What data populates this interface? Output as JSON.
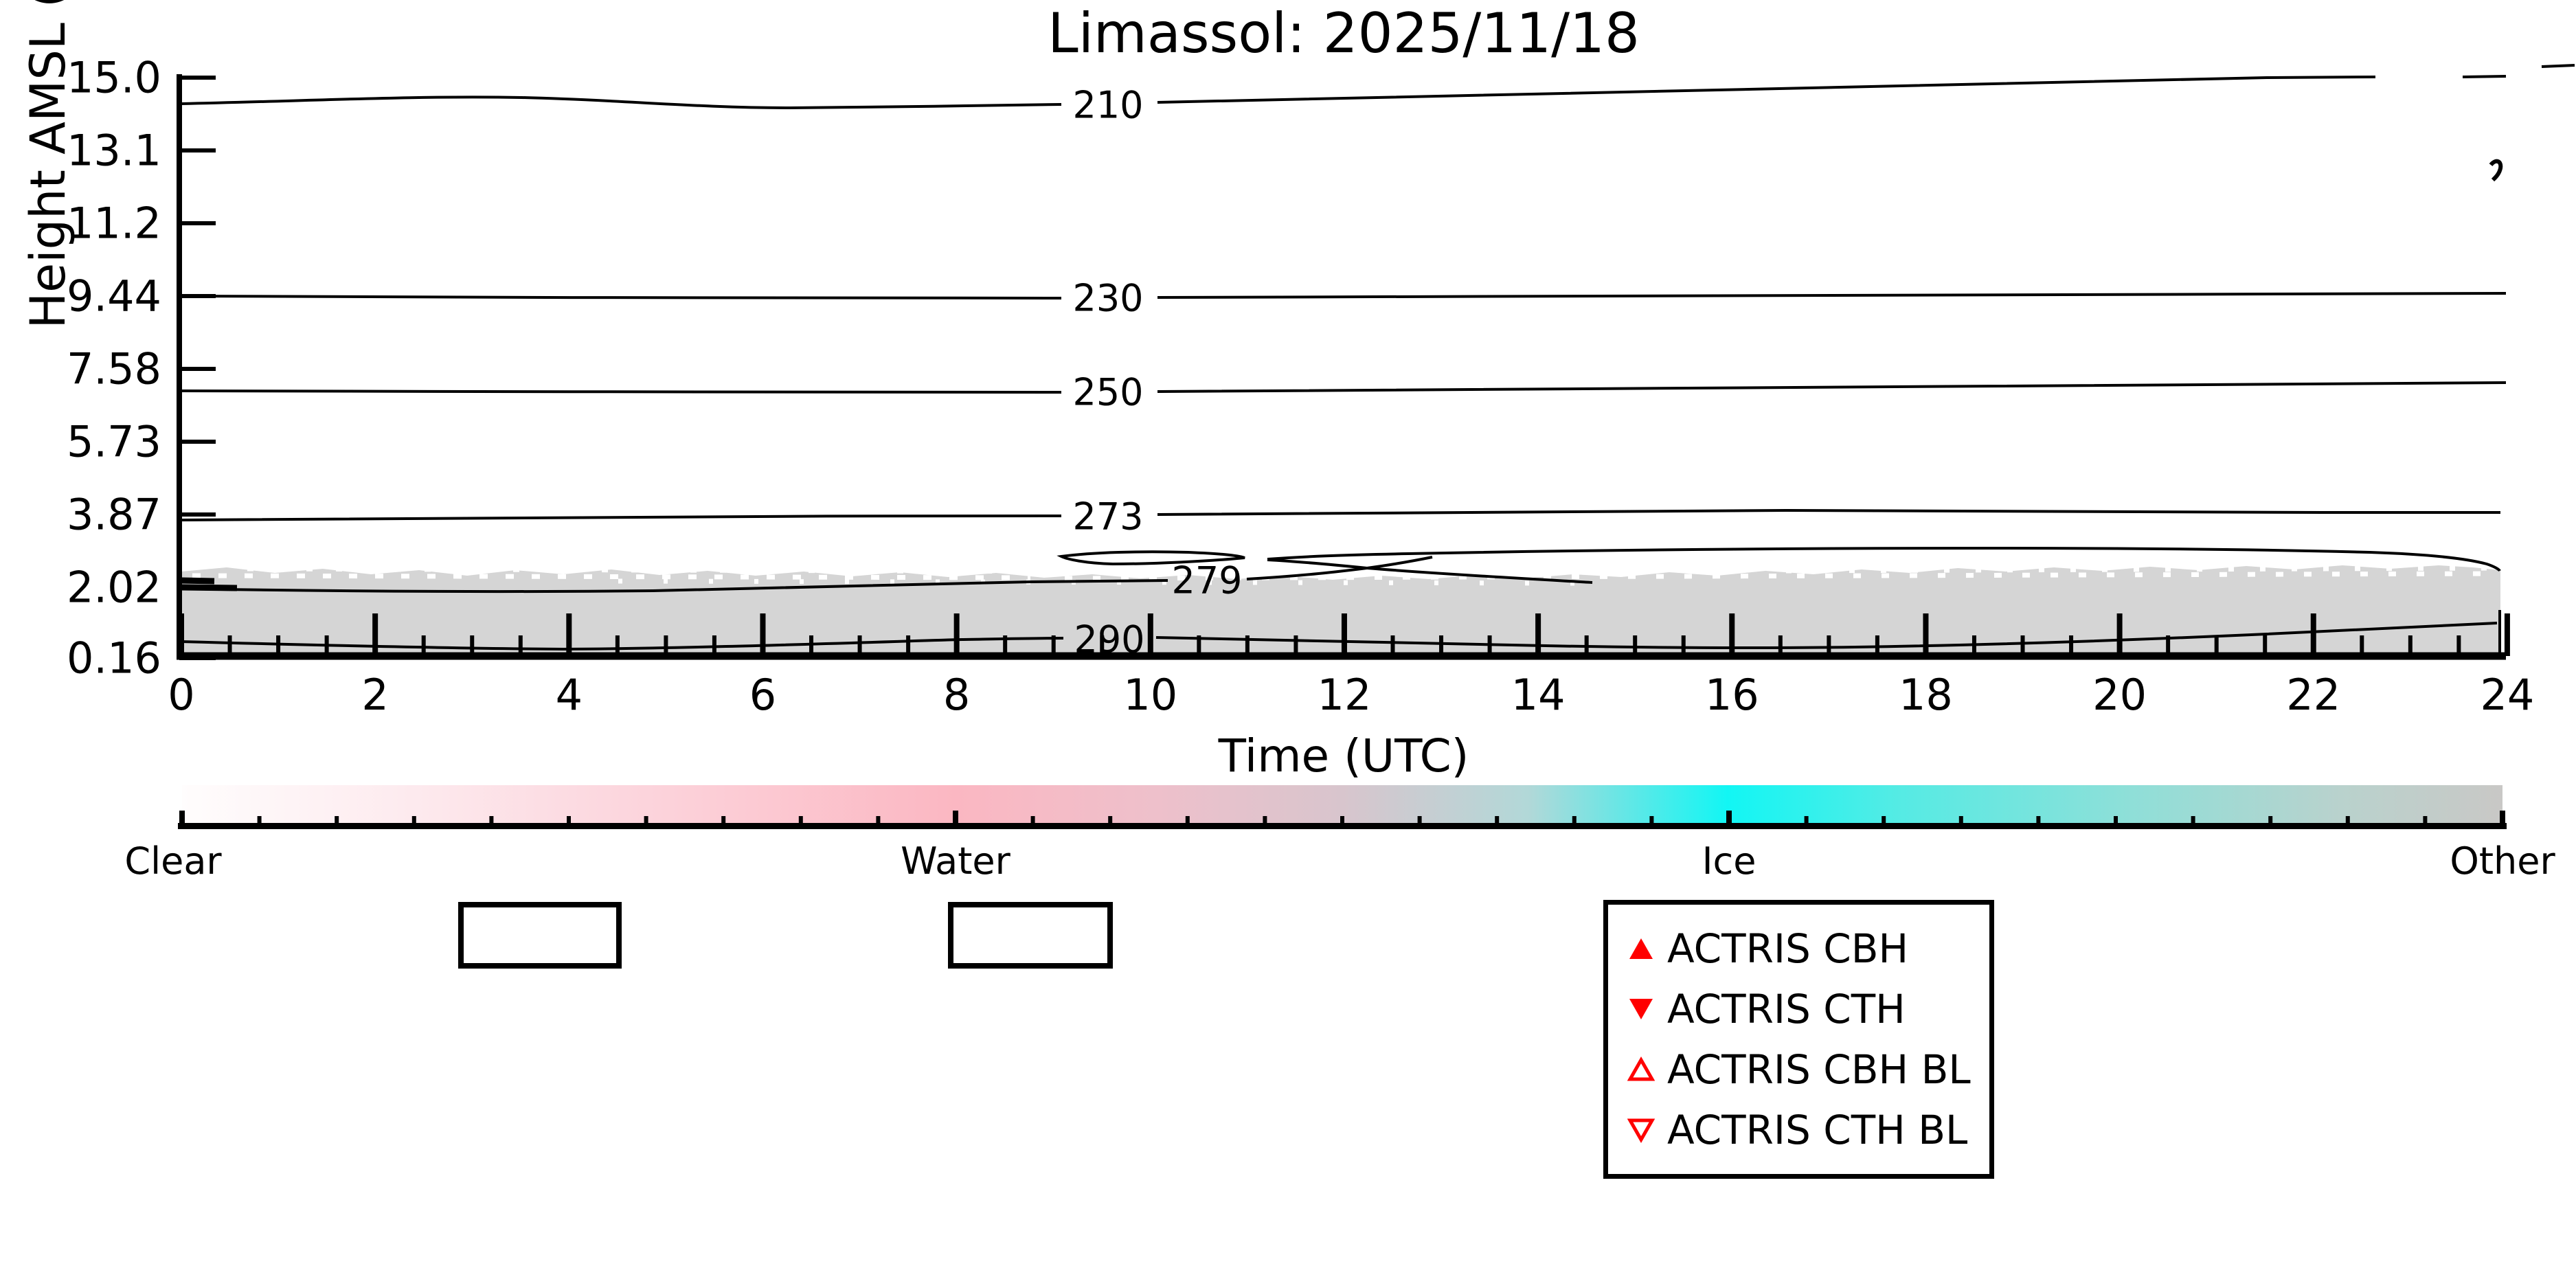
{
  "title": "Limassol: 2025/11/18",
  "axes": {
    "y": {
      "label": "Height AMSL (km)",
      "ticks": [
        "15.0",
        "13.1",
        "11.2",
        "9.44",
        "7.58",
        "5.73",
        "3.87",
        "2.02",
        "0.16"
      ]
    },
    "x": {
      "label": "Time (UTC)",
      "ticks": [
        "0",
        "2",
        "4",
        "6",
        "8",
        "10",
        "12",
        "14",
        "16",
        "18",
        "20",
        "22",
        "24"
      ]
    }
  },
  "contours": {
    "labels": [
      "210",
      "230",
      "250",
      "273",
      "279",
      "290"
    ]
  },
  "colorbar": {
    "labels": [
      "Clear",
      "Water",
      "Ice",
      "Other"
    ],
    "colors": {
      "clear": "#fffdfd",
      "water": "#fbb7c2",
      "ice": "#12f6f4",
      "other": "#c9c8c6"
    }
  },
  "legend": {
    "marker_color": "#ff0000",
    "items": [
      {
        "label": "ACTRIS CBH",
        "marker": "filled-up-triangle"
      },
      {
        "label": "ACTRIS CTH",
        "marker": "filled-down-triangle"
      },
      {
        "label": "ACTRIS CBH BL",
        "marker": "open-up-triangle"
      },
      {
        "label": "ACTRIS CTH BL",
        "marker": "open-down-triangle"
      }
    ]
  },
  "chart_data": {
    "type": "contour",
    "title": "Limassol: 2025/11/18",
    "xlabel": "Time (UTC)",
    "ylabel": "Height AMSL (km)",
    "x_range_hours_utc": [
      0,
      24
    ],
    "x_tick_step_hours": 2,
    "y_tick_values_km": [
      15.0,
      13.1,
      11.2,
      9.44,
      7.58,
      5.73,
      3.87,
      2.02,
      0.16
    ],
    "contour_levels_K": [
      210,
      230,
      250,
      273,
      279,
      290
    ],
    "contour_height_km_approx": {
      "210": {
        "at_00utc": 14.3,
        "at_24utc": 15.0
      },
      "230": {
        "at_00utc": 9.44,
        "at_24utc": 9.5
      },
      "250": {
        "at_00utc": 7.0,
        "at_24utc": 7.2
      },
      "273": {
        "at_00utc": 3.85,
        "at_24utc": 3.9
      },
      "279": {
        "at_00utc": 2.05,
        "at_24utc": 2.6,
        "note": "closed lens features between 09 and 13 UTC near 2.3 km"
      },
      "290": {
        "at_00utc": 0.65,
        "at_24utc": 1.1
      }
    },
    "shaded_region": {
      "description": "light-gray classified layer from surface up to ~2.4 km AMSL across all 24 h, noisy speckled top edge",
      "top_km_approx": 2.4,
      "bottom_km": 0.16,
      "color": "#d5d5d5"
    },
    "classification_colorbar_categories": [
      "Clear",
      "Water",
      "Ice",
      "Other"
    ],
    "legend_entries": [
      "ACTRIS CBH",
      "ACTRIS CTH",
      "ACTRIS CBH BL",
      "ACTRIS CTH BL"
    ],
    "grid": false,
    "legend_position": "below chart, right of center"
  }
}
